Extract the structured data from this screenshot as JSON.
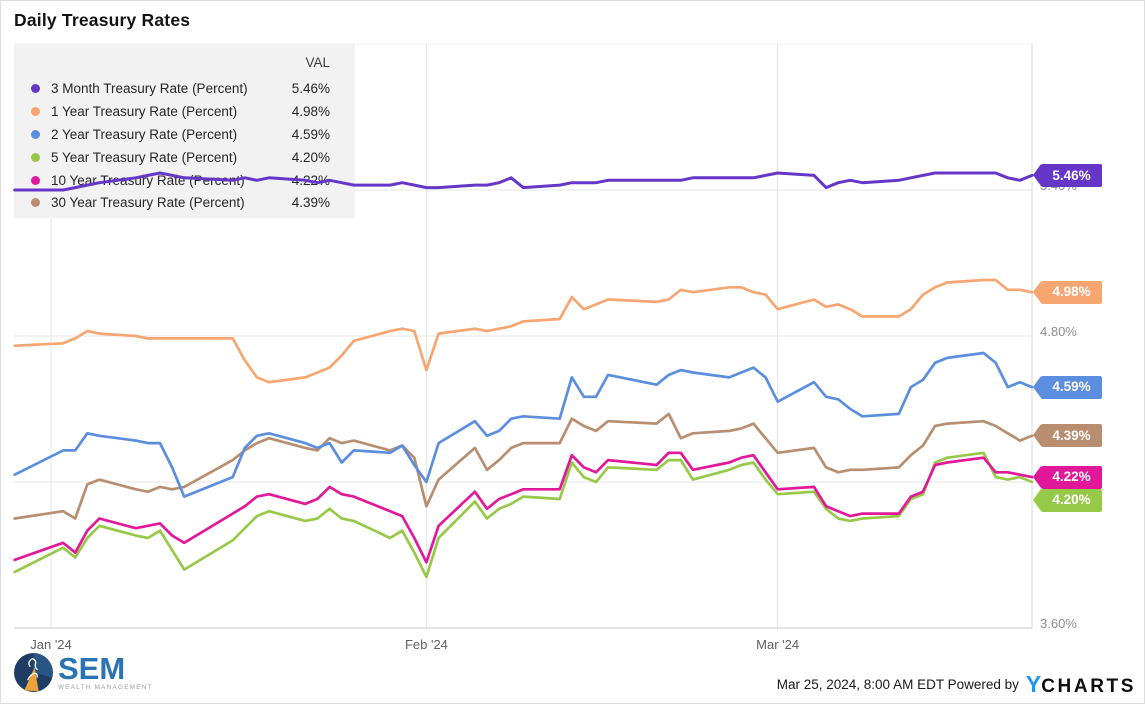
{
  "title": "Daily Treasury Rates",
  "legend": {
    "val_header": "VAL",
    "items": [
      {
        "label": "3 Month Treasury Rate (Percent)",
        "value": "5.46%"
      },
      {
        "label": "1 Year Treasury Rate (Percent)",
        "value": "4.98%"
      },
      {
        "label": "2 Year Treasury Rate (Percent)",
        "value": "4.59%"
      },
      {
        "label": "5 Year Treasury Rate (Percent)",
        "value": "4.20%"
      },
      {
        "label": "10 Year Treasury Rate (Percent)",
        "value": "4.22%"
      },
      {
        "label": "30 Year Treasury Rate (Percent)",
        "value": "4.39%"
      }
    ]
  },
  "footer": {
    "timestamp": "Mar 25, 2024, 8:00 AM EDT",
    "powered_by": "Powered by",
    "brand_y": "Y",
    "brand_rest": "CHARTS"
  },
  "logo": {
    "name": "SEM",
    "subtitle": "WEALTH MANAGEMENT"
  },
  "colors": {
    "m3": "#6636c9",
    "y1": "#f7a571",
    "y2": "#5b8ede",
    "y5": "#97c949",
    "y10": "#e2189b",
    "y30": "#b98e70",
    "grid": "#e5e5e5",
    "axis_bottom": "#c9c9c9",
    "plot_border": "#d9d9d9"
  },
  "chart_data": {
    "type": "line",
    "title": "Daily Treasury Rates",
    "ylim": [
      3.6,
      6.0
    ],
    "grid": true,
    "legend_position": "top-left",
    "y_axis_labels": [
      {
        "text": "5.40%",
        "value": 5.4
      },
      {
        "text": "4.80%",
        "value": 4.8
      },
      {
        "text": "3.60%",
        "value": 3.6
      }
    ],
    "x_axis_labels": [
      {
        "text": "Jan '24",
        "date": "Jan 1"
      },
      {
        "text": "Feb '24",
        "date": "Feb 1"
      },
      {
        "text": "Mar '24",
        "date": "Mar 1"
      }
    ],
    "x_gridline_dates": [
      "Jan 1",
      "Feb 1",
      "Mar 1",
      "Mar 22"
    ],
    "x_dates": [
      "Dec 29",
      "Jan 2",
      "Jan 3",
      "Jan 4",
      "Jan 5",
      "Jan 8",
      "Jan 9",
      "Jan 10",
      "Jan 11",
      "Jan 12",
      "Jan 16",
      "Jan 17",
      "Jan 18",
      "Jan 19",
      "Jan 22",
      "Jan 23",
      "Jan 24",
      "Jan 25",
      "Jan 26",
      "Jan 29",
      "Jan 30",
      "Jan 31",
      "Feb 1",
      "Feb 2",
      "Feb 5",
      "Feb 6",
      "Feb 7",
      "Feb 8",
      "Feb 9",
      "Feb 12",
      "Feb 13",
      "Feb 14",
      "Feb 15",
      "Feb 16",
      "Feb 20",
      "Feb 21",
      "Feb 22",
      "Feb 23",
      "Feb 26",
      "Feb 27",
      "Feb 28",
      "Feb 29",
      "Mar 1",
      "Mar 4",
      "Mar 5",
      "Mar 6",
      "Mar 7",
      "Mar 8",
      "Mar 11",
      "Mar 12",
      "Mar 13",
      "Mar 14",
      "Mar 15",
      "Mar 18",
      "Mar 19",
      "Mar 20",
      "Mar 21",
      "Mar 22"
    ],
    "series": [
      {
        "name": "3 Month Treasury Rate (Percent)",
        "color_key": "m3",
        "end_label": "5.46%",
        "values": [
          5.4,
          5.4,
          5.41,
          5.42,
          5.43,
          5.45,
          5.46,
          5.47,
          5.46,
          5.45,
          5.44,
          5.45,
          5.44,
          5.45,
          5.44,
          5.43,
          5.44,
          5.43,
          5.42,
          5.42,
          5.43,
          5.42,
          5.41,
          5.41,
          5.42,
          5.42,
          5.43,
          5.45,
          5.41,
          5.42,
          5.43,
          5.43,
          5.43,
          5.44,
          5.44,
          5.44,
          5.44,
          5.45,
          5.45,
          5.45,
          5.45,
          5.46,
          5.47,
          5.46,
          5.41,
          5.43,
          5.44,
          5.43,
          5.44,
          5.45,
          5.46,
          5.47,
          5.47,
          5.47,
          5.47,
          5.45,
          5.44,
          5.46
        ]
      },
      {
        "name": "1 Year Treasury Rate (Percent)",
        "color_key": "y1",
        "end_label": "4.98%",
        "values": [
          4.76,
          4.77,
          4.79,
          4.82,
          4.81,
          4.8,
          4.79,
          4.79,
          4.79,
          4.79,
          4.79,
          4.7,
          4.63,
          4.61,
          4.63,
          4.65,
          4.67,
          4.72,
          4.78,
          4.82,
          4.83,
          4.82,
          4.66,
          4.81,
          4.83,
          4.82,
          4.83,
          4.84,
          4.86,
          4.87,
          4.96,
          4.91,
          4.93,
          4.95,
          4.94,
          4.95,
          4.99,
          4.98,
          5.0,
          5.0,
          4.98,
          4.97,
          4.91,
          4.95,
          4.92,
          4.93,
          4.91,
          4.88,
          4.88,
          4.91,
          4.97,
          5.0,
          5.02,
          5.03,
          5.03,
          4.99,
          4.99,
          4.98
        ]
      },
      {
        "name": "2 Year Treasury Rate (Percent)",
        "color_key": "y2",
        "end_label": "4.59%",
        "values": [
          4.23,
          4.33,
          4.33,
          4.4,
          4.39,
          4.37,
          4.36,
          4.36,
          4.26,
          4.14,
          4.22,
          4.34,
          4.39,
          4.4,
          4.36,
          4.34,
          4.36,
          4.28,
          4.33,
          4.32,
          4.35,
          4.27,
          4.2,
          4.36,
          4.45,
          4.39,
          4.41,
          4.46,
          4.47,
          4.46,
          4.63,
          4.55,
          4.55,
          4.64,
          4.6,
          4.64,
          4.66,
          4.65,
          4.63,
          4.65,
          4.67,
          4.63,
          4.53,
          4.61,
          4.55,
          4.54,
          4.5,
          4.47,
          4.48,
          4.59,
          4.62,
          4.69,
          4.71,
          4.73,
          4.69,
          4.59,
          4.61,
          4.59
        ]
      },
      {
        "name": "5 Year Treasury Rate (Percent)",
        "color_key": "y5",
        "end_label": "4.20%",
        "values": [
          3.83,
          3.93,
          3.89,
          3.97,
          4.02,
          3.98,
          3.97,
          4.0,
          3.92,
          3.84,
          3.96,
          4.01,
          4.06,
          4.08,
          4.04,
          4.05,
          4.09,
          4.05,
          4.04,
          3.97,
          4.0,
          3.91,
          3.81,
          3.97,
          4.12,
          4.05,
          4.09,
          4.11,
          4.14,
          4.13,
          4.28,
          4.22,
          4.2,
          4.26,
          4.25,
          4.29,
          4.29,
          4.21,
          4.25,
          4.27,
          4.28,
          4.21,
          4.15,
          4.16,
          4.09,
          4.05,
          4.04,
          4.05,
          4.06,
          4.13,
          4.15,
          4.28,
          4.3,
          4.32,
          4.22,
          4.21,
          4.22,
          4.2
        ]
      },
      {
        "name": "10 Year Treasury Rate (Percent)",
        "color_key": "y10",
        "end_label": "4.22%",
        "values": [
          3.88,
          3.95,
          3.91,
          4.0,
          4.05,
          4.01,
          4.02,
          4.03,
          3.98,
          3.95,
          4.07,
          4.1,
          4.14,
          4.15,
          4.11,
          4.13,
          4.18,
          4.15,
          4.14,
          4.08,
          4.06,
          3.97,
          3.87,
          4.02,
          4.16,
          4.09,
          4.13,
          4.15,
          4.17,
          4.17,
          4.31,
          4.26,
          4.24,
          4.29,
          4.27,
          4.32,
          4.32,
          4.25,
          4.28,
          4.3,
          4.31,
          4.24,
          4.17,
          4.18,
          4.1,
          4.08,
          4.06,
          4.07,
          4.07,
          4.14,
          4.16,
          4.27,
          4.28,
          4.3,
          4.24,
          4.24,
          4.23,
          4.22
        ]
      },
      {
        "name": "30 Year Treasury Rate (Percent)",
        "color_key": "y30",
        "end_label": "4.39%",
        "values": [
          4.05,
          4.08,
          4.05,
          4.19,
          4.21,
          4.17,
          4.16,
          4.18,
          4.17,
          4.18,
          4.29,
          4.33,
          4.36,
          4.38,
          4.34,
          4.33,
          4.38,
          4.36,
          4.37,
          4.33,
          4.35,
          4.3,
          4.1,
          4.21,
          4.34,
          4.25,
          4.29,
          4.34,
          4.36,
          4.36,
          4.46,
          4.43,
          4.41,
          4.45,
          4.44,
          4.48,
          4.38,
          4.4,
          4.41,
          4.42,
          4.44,
          4.38,
          4.32,
          4.34,
          4.26,
          4.24,
          4.25,
          4.25,
          4.26,
          4.31,
          4.35,
          4.43,
          4.44,
          4.45,
          4.43,
          4.4,
          4.37,
          4.39
        ]
      }
    ]
  }
}
